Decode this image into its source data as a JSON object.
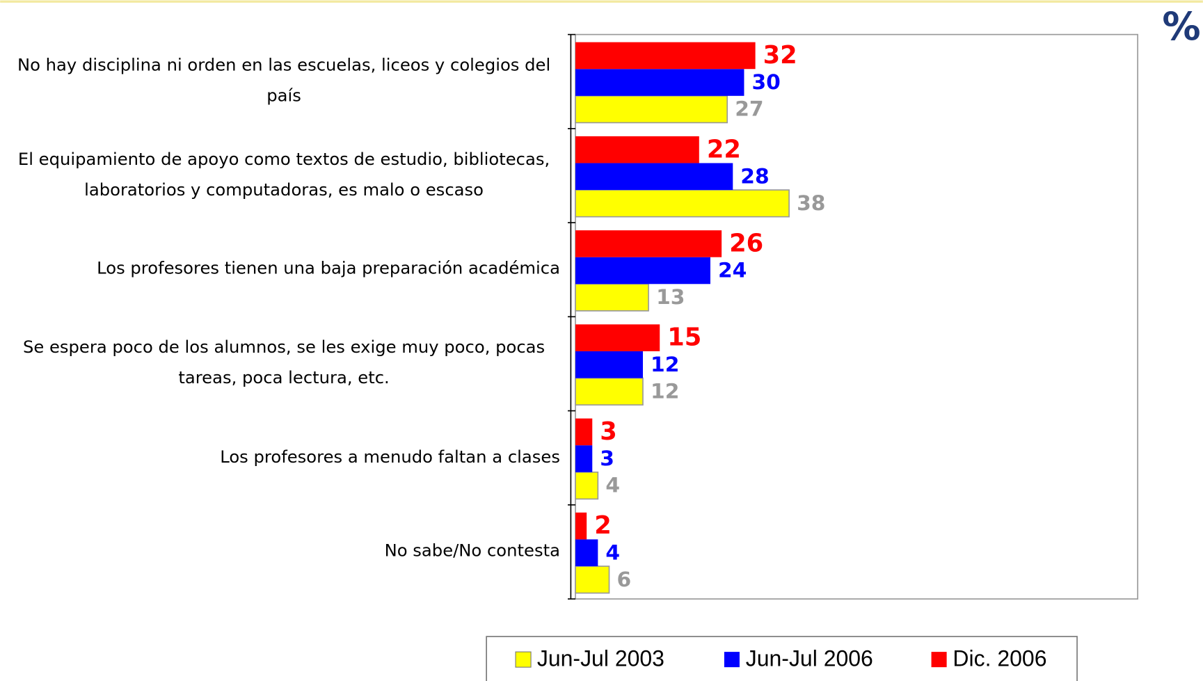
{
  "chart_data": {
    "type": "hbar",
    "annotation": "%",
    "categories": [
      "No hay disciplina ni orden en las escuelas, liceos y colegios del país",
      "El equipamiento de apoyo como textos de estudio, bibliotecas, laboratorios y computadoras, es malo o escaso",
      "Los profesores tienen una baja preparación académica",
      "Se espera poco de los alumnos, se les exige muy poco, pocas tareas, poca lectura, etc.",
      "Los profesores a menudo faltan a clases",
      "No sabe/No contesta"
    ],
    "series": [
      {
        "name": "Jun-Jul 2003",
        "color": "#ffff00",
        "label_color": "#999999",
        "values": [
          27,
          38,
          13,
          12,
          4,
          6
        ]
      },
      {
        "name": "Jun-Jul 2006",
        "color": "#0000ff",
        "label_color": "#0000ff",
        "values": [
          30,
          28,
          24,
          12,
          3,
          4
        ]
      },
      {
        "name": "Dic. 2006",
        "color": "#ff0000",
        "label_color": "#ff0000",
        "values": [
          32,
          22,
          26,
          15,
          3,
          2
        ]
      }
    ],
    "xlim": [
      0,
      100
    ],
    "legend": "bottom"
  }
}
